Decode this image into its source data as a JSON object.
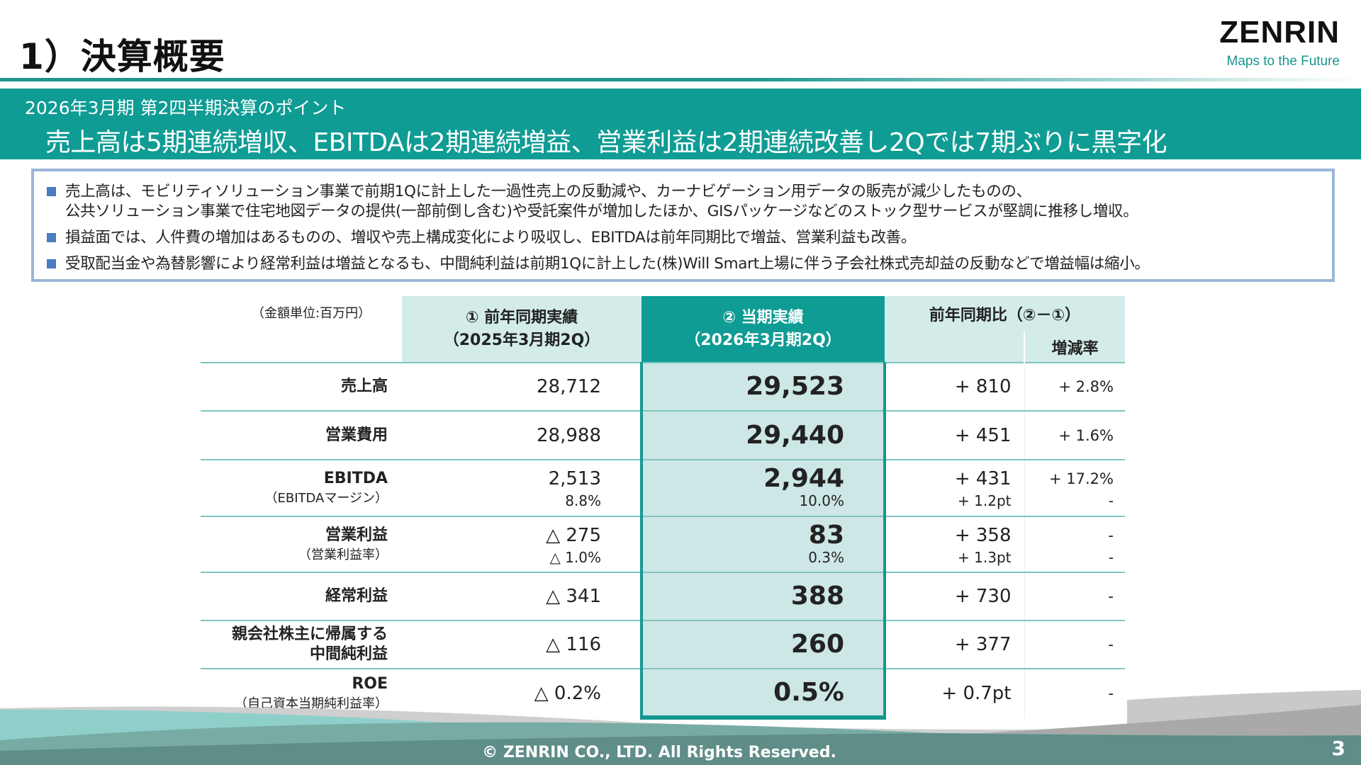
{
  "header": {
    "title": "1）決算概要",
    "logo": "ZENRIN",
    "logo_tagline": "Maps to the Future"
  },
  "banner": {
    "subtitle": "2026年3月期 第2四半期決算のポイント",
    "headline": "売上高は5期連続増収、EBITDAは2期連続増益、営業利益は2期連続改善し2Qでは7期ぶりに黒字化"
  },
  "points": [
    {
      "line1": "売上高は、モビリティソリューション事業で前期1Qに計上した一過性売上の反動減や、カーナビゲーション用データの販売が減少したものの、",
      "line2": "公共ソリューション事業で住宅地図データの提供(一部前倒し含む)や受託案件が増加したほか、GISパッケージなどのストック型サービスが堅調に推移し増収。"
    },
    {
      "line1": "損益面では、人件費の増加はあるものの、増収や売上構成変化により吸収し、EBITDAは前年同期比で増益、営業利益も改善。"
    },
    {
      "line1": "受取配当金や為替影響により経常利益は増益となるも、中間純利益は前期1Qに計上した(株)Will Smart上場に伴う子会社株式売却益の反動などで増益幅は縮小。"
    }
  ],
  "table": {
    "unit": "（金額単位:百万円）",
    "prev_header": [
      "① 前年同期実績",
      "（2025年3月期2Q）"
    ],
    "cur_header": [
      "② 当期実績",
      "（2026年3月期2Q）"
    ],
    "diff_header": "前年同期比（②－①）",
    "rate_header": "増減率",
    "rows": [
      {
        "label": "売上高",
        "sublabel": "",
        "prev": "28,712",
        "prev_sub": "",
        "cur": "29,523",
        "cur_sub": "",
        "diff": "+ 810",
        "diff_sub": "",
        "rate": "+ 2.8%",
        "rate_sub": ""
      },
      {
        "label": "営業費用",
        "sublabel": "",
        "prev": "28,988",
        "prev_sub": "",
        "cur": "29,440",
        "cur_sub": "",
        "diff": "+ 451",
        "diff_sub": "",
        "rate": "+ 1.6%",
        "rate_sub": ""
      },
      {
        "label": "EBITDA",
        "sublabel": "（EBITDAマージン）",
        "prev": "2,513",
        "prev_sub": "8.8%",
        "cur": "2,944",
        "cur_sub": "10.0%",
        "diff": "+ 431",
        "diff_sub": "+ 1.2pt",
        "rate": "+ 17.2%",
        "rate_sub": "-"
      },
      {
        "label": "営業利益",
        "sublabel": "（営業利益率）",
        "prev": "△ 275",
        "prev_sub": "△ 1.0%",
        "cur": "83",
        "cur_sub": "0.3%",
        "diff": "+ 358",
        "diff_sub": "+ 1.3pt",
        "rate": "-",
        "rate_sub": "-"
      },
      {
        "label": "経常利益",
        "sublabel": "",
        "prev": "△ 341",
        "prev_sub": "",
        "cur": "388",
        "cur_sub": "",
        "diff": "+ 730",
        "diff_sub": "",
        "rate": "-",
        "rate_sub": ""
      },
      {
        "label": "親会社株主に帰属する",
        "sublabel": "中間純利益",
        "prev": "△ 116",
        "prev_sub": "",
        "cur": "260",
        "cur_sub": "",
        "diff": "+ 377",
        "diff_sub": "",
        "rate": "-",
        "rate_sub": ""
      },
      {
        "label": "ROE",
        "sublabel": "（自己資本当期純利益率）",
        "prev": "△ 0.2%",
        "prev_sub": "",
        "cur": "0.5%",
        "cur_sub": "",
        "diff": "+ 0.7pt",
        "diff_sub": "",
        "rate": "-",
        "rate_sub": ""
      }
    ]
  },
  "footer": {
    "copyright": "© ZENRIN CO., LTD. All Rights Reserved.",
    "page": "3"
  },
  "colors": {
    "teal": "#0f9c94",
    "teal_light": "#cde6e6",
    "bullet": "#4a7cc0"
  }
}
